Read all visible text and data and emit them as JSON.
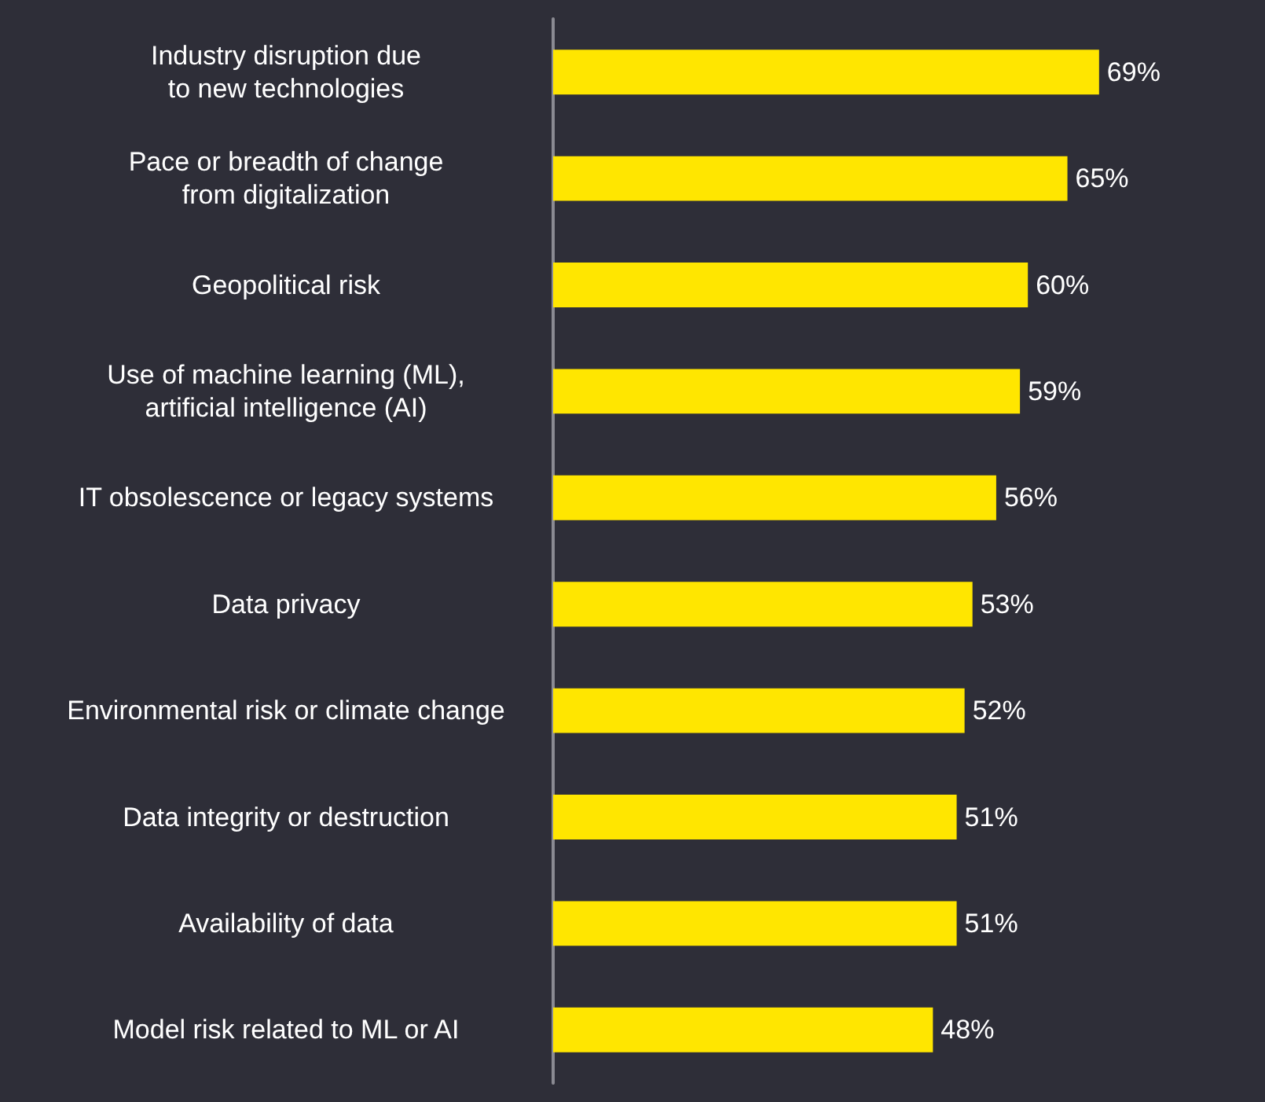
{
  "chart_data": {
    "type": "bar",
    "orientation": "horizontal",
    "categories": [
      "Industry disruption due\nto new technologies",
      "Pace or breadth of change\nfrom digitalization",
      "Geopolitical risk",
      "Use of machine learning (ML),\nartificial intelligence (AI)",
      "IT obsolescence or legacy systems",
      "Data privacy",
      "Environmental risk or climate change",
      "Data integrity or destruction",
      "Availability of data",
      "Model risk related to ML or AI"
    ],
    "values": [
      69,
      65,
      60,
      59,
      56,
      53,
      52,
      51,
      51,
      48
    ],
    "value_labels": [
      "69%",
      "65%",
      "60%",
      "59%",
      "56%",
      "53%",
      "52%",
      "51%",
      "51%",
      "48%"
    ],
    "color": "#ffe600"
  }
}
